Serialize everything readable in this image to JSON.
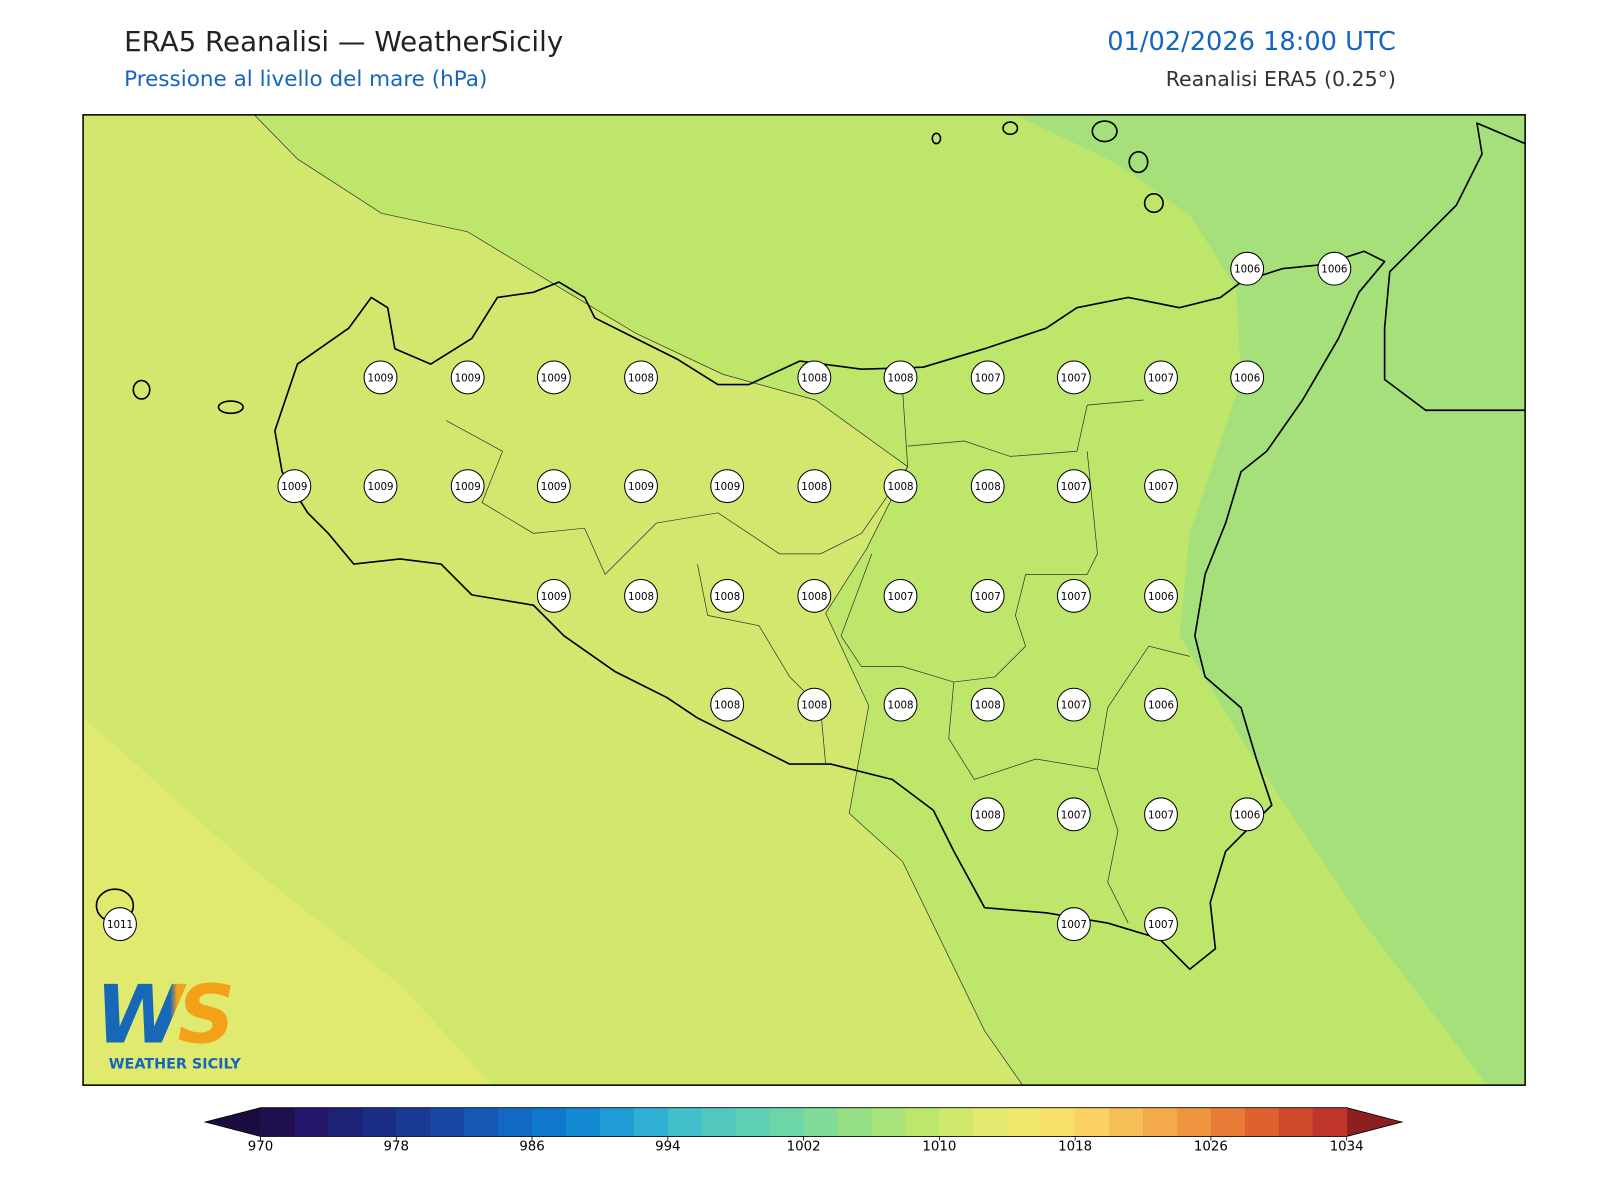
{
  "header": {
    "title": "ERA5 Reanalisi — WeatherSicily",
    "subtitle": "Pressione al livello del mare (hPa)",
    "datetime": "01/02/2026 18:00 UTC",
    "source": "Reanalisi ERA5 (0.25°)"
  },
  "logo": {
    "mark": "WS",
    "text": "WEATHER SICILY"
  },
  "pressure_labels": [
    1006,
    1006,
    1009,
    1009,
    1009,
    1008,
    1008,
    1008,
    1007,
    1007,
    1007,
    1006,
    1009,
    1009,
    1009,
    1009,
    1009,
    1009,
    1008,
    1008,
    1008,
    1007,
    1007,
    1009,
    1008,
    1008,
    1008,
    1007,
    1007,
    1007,
    1006,
    1008,
    1008,
    1008,
    1008,
    1007,
    1006,
    1008,
    1007,
    1007,
    1006,
    1011,
    1007,
    1007
  ],
  "colorbar": {
    "range": [
      970,
      1034
    ],
    "ticks": [
      970,
      978,
      986,
      994,
      1002,
      1010,
      1018,
      1026,
      1034
    ],
    "colors": [
      "#1f0f4d",
      "#23166b",
      "#1e2277",
      "#1b2e86",
      "#1a3a94",
      "#1848a4",
      "#1558b4",
      "#1268c2",
      "#0f78cc",
      "#148ad2",
      "#1f9bd6",
      "#30b0d4",
      "#44c0cc",
      "#52c8bf",
      "#5fd0b4",
      "#6dd6a8",
      "#80dc98",
      "#95df85",
      "#a8e27a",
      "#bce66c",
      "#d0e86c",
      "#e1ea6e",
      "#f0e86c",
      "#f8df66",
      "#fbd163",
      "#f6be57",
      "#f2aa4a",
      "#ee953f",
      "#e87b35",
      "#de612e",
      "#cf4a2c",
      "#c0362c"
    ],
    "under_color": "#1a0c40",
    "over_color": "#8b2020"
  }
}
